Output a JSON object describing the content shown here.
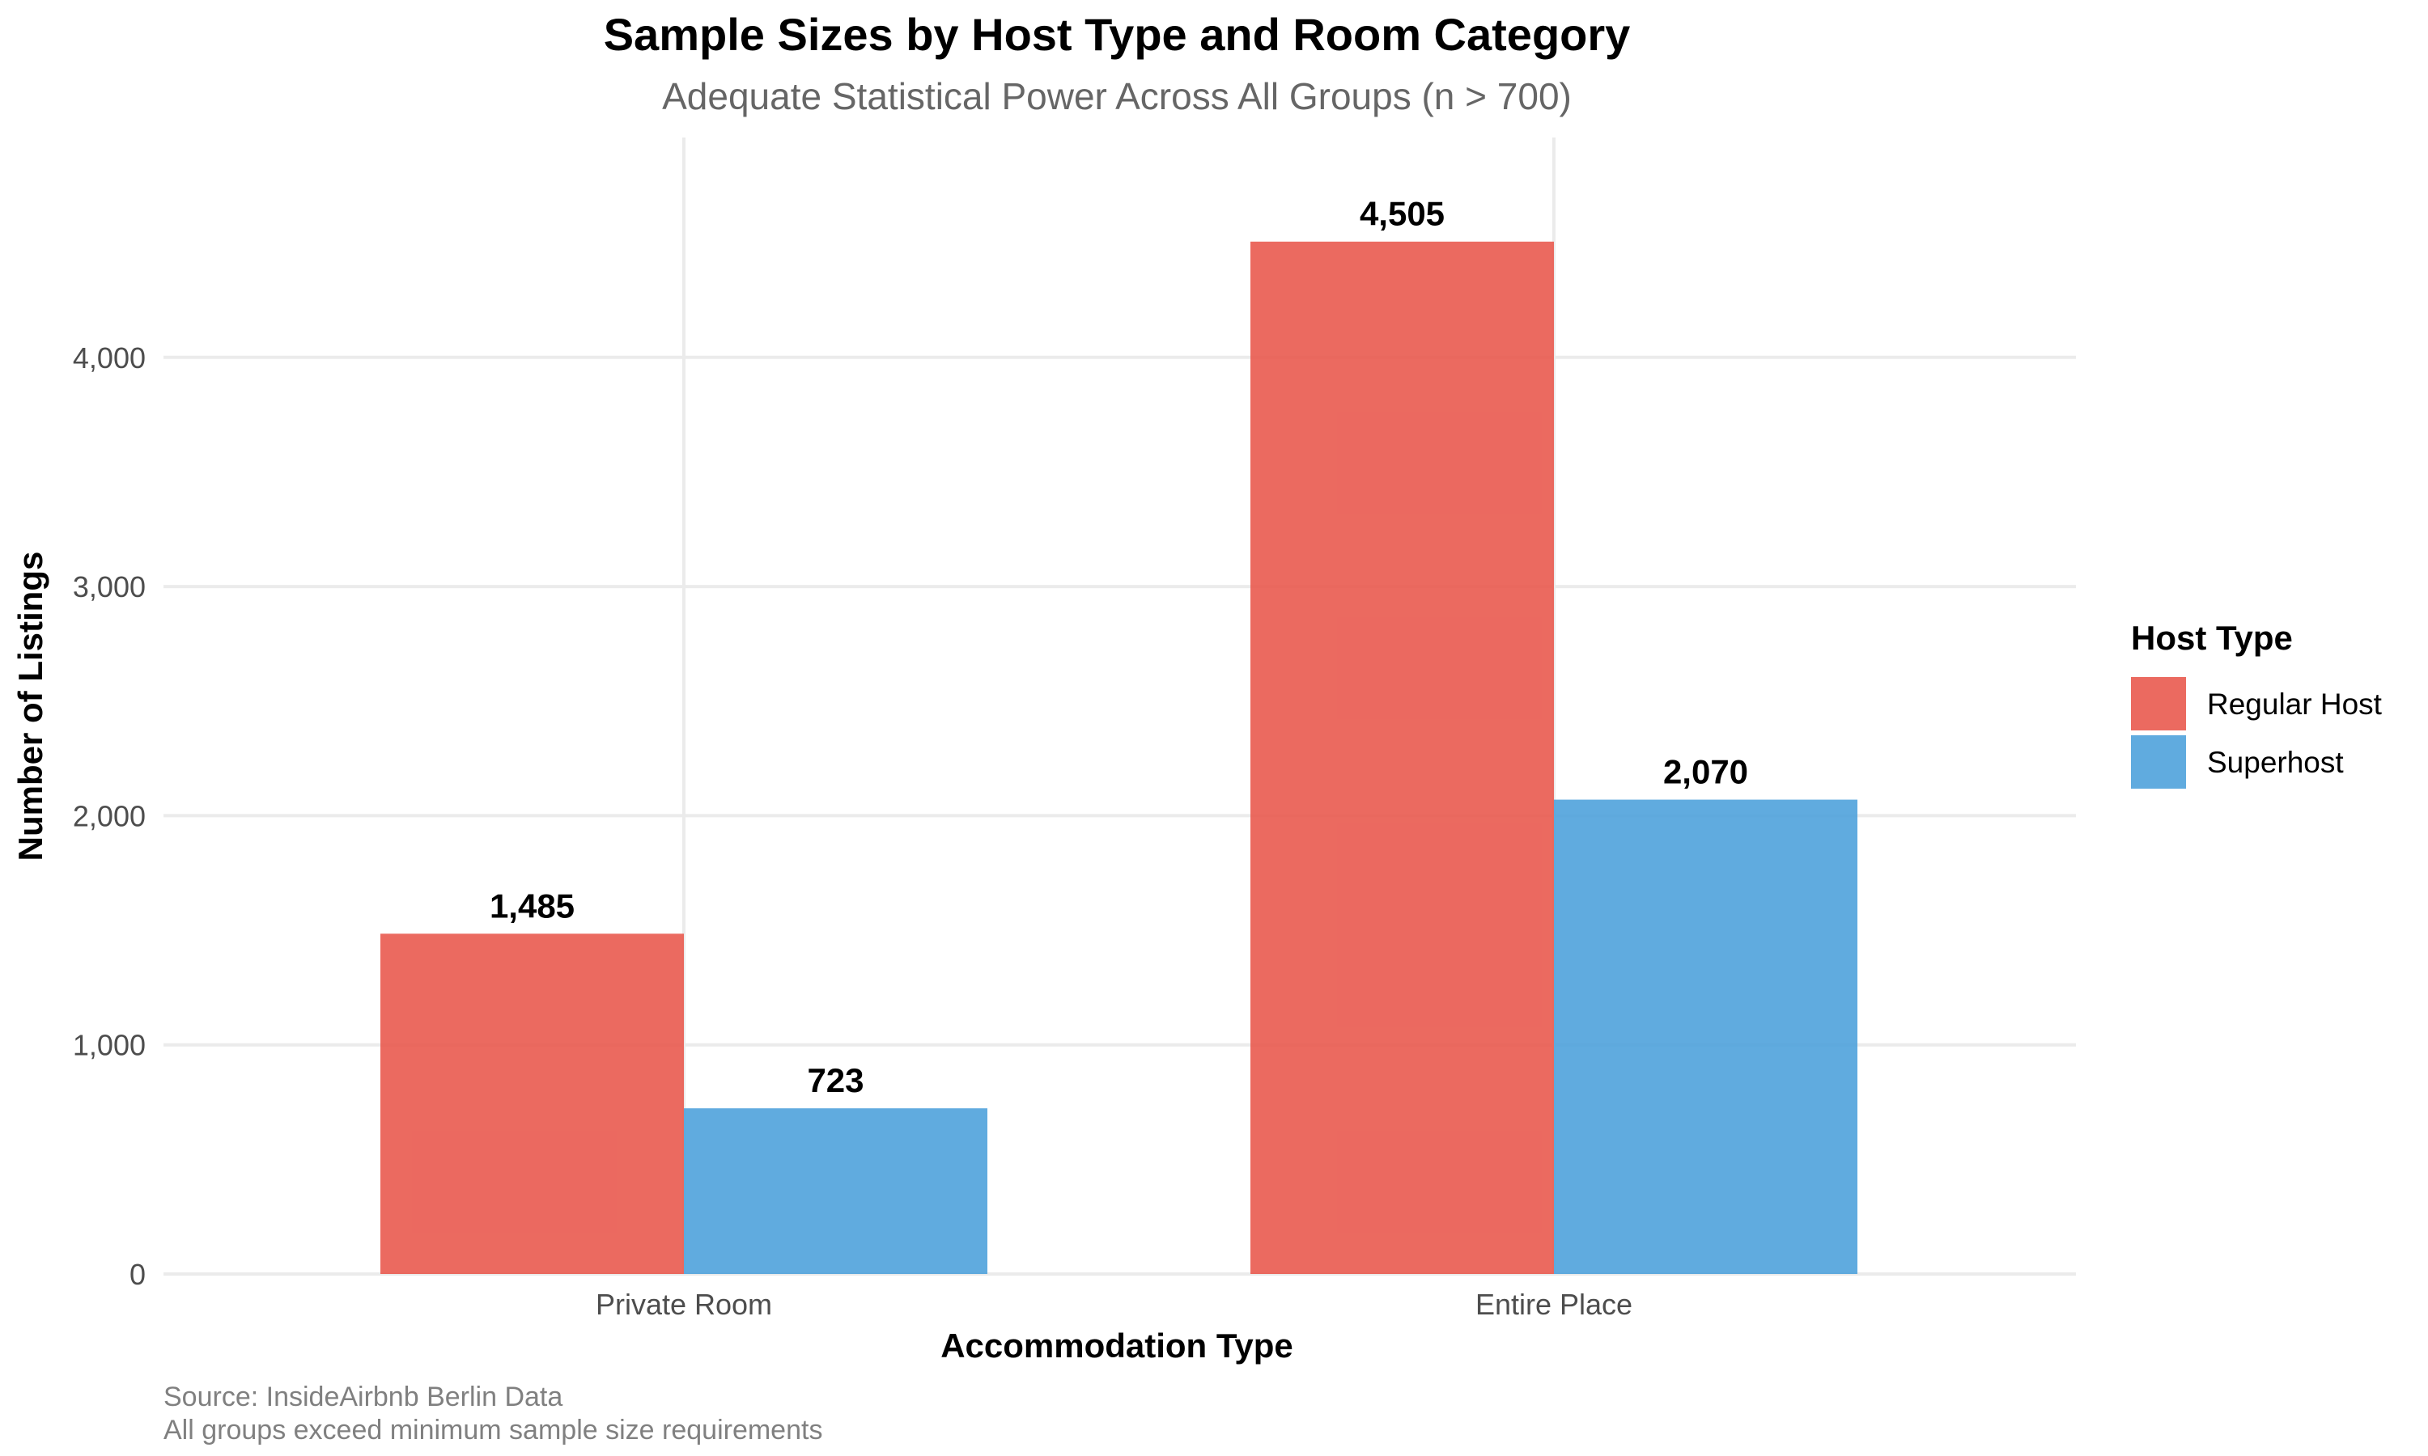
{
  "chart_data": {
    "type": "bar",
    "title": "Sample Sizes by Host Type and Room Category",
    "subtitle": "Adequate Statistical Power Across All Groups (n > 700)",
    "xlabel": "Accommodation Type",
    "ylabel": "Number of Listings",
    "categories": [
      "Private Room",
      "Entire Place"
    ],
    "series": [
      {
        "name": "Regular Host",
        "color": "#E8554A",
        "values": [
          1485,
          4505
        ],
        "labels": [
          "1,485",
          "4,505"
        ]
      },
      {
        "name": "Superhost",
        "color": "#4A9FDB",
        "values": [
          723,
          2070
        ],
        "labels": [
          "723",
          "2,070"
        ]
      }
    ],
    "ylim": [
      0,
      4950
    ],
    "yticks": [
      0,
      1000,
      2000,
      3000,
      4000
    ],
    "ytick_labels": [
      "0",
      "1,000",
      "2,000",
      "3,000",
      "4,000"
    ],
    "grid": true,
    "legend": {
      "title": "Host Type",
      "placement": "right"
    },
    "caption": [
      "Source: InsideAirbnb Berlin Data",
      "All groups exceed minimum sample size requirements"
    ]
  }
}
